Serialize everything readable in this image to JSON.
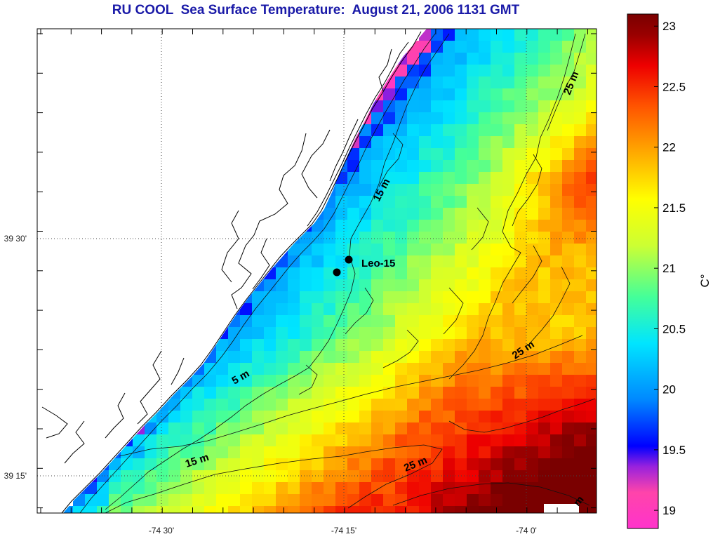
{
  "title": "RU COOL  Sea Surface Temperature:  August 21, 2006 1131 GMT",
  "colorbar": {
    "unit": "C°",
    "ticks": [
      "23",
      "22.5",
      "22",
      "21.5",
      "21",
      "20.5",
      "20",
      "19.5",
      "19"
    ],
    "tick_values": [
      23,
      22.5,
      22,
      21.5,
      21,
      20.5,
      20,
      19.5,
      19
    ],
    "range": [
      18.85,
      23.1
    ],
    "colors": [
      "#ff33cc",
      "#ff44aa",
      "#9922dd",
      "#0000ff",
      "#0088ff",
      "#00e5ff",
      "#44ff99",
      "#ccff33",
      "#ffff00",
      "#ffaa00",
      "#ff5500",
      "#ee0000",
      "#990000",
      "#7a0000"
    ]
  },
  "axes": {
    "x_ticks": [
      "-74 30'",
      "-74 15'",
      "-74 0'"
    ],
    "y_ticks": [
      "39 30'",
      "39 15'"
    ]
  },
  "contour_labels": [
    "15 m",
    "25 m",
    "5 m",
    "25 m",
    "15 m",
    "25 m",
    "m"
  ],
  "station": {
    "label": "Leo-15"
  },
  "colors": {
    "title": "#1a1aa8",
    "land": "#ffffff",
    "coast": "#000000"
  }
}
